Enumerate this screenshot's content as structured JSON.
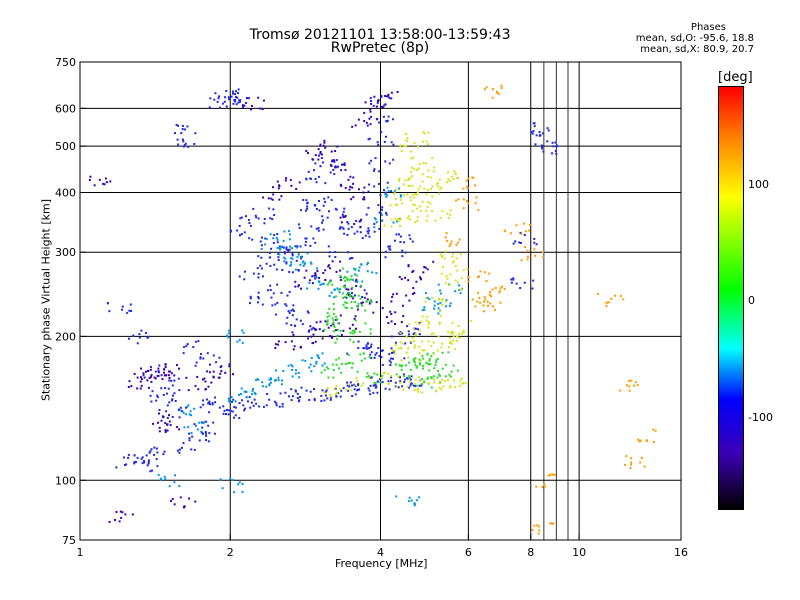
{
  "chart_data": {
    "type": "scatter",
    "title": "Tromsø 20121101 13:58:00-13:59:43",
    "subtitle": "RwPretec (8p)",
    "xlabel": "Frequency [MHz]",
    "ylabel": "Stationary phase Virtual Height [km]",
    "x_scale": "log",
    "y_scale": "log",
    "xlim": [
      1,
      16
    ],
    "ylim": [
      75,
      750
    ],
    "x_ticks": [
      1,
      2,
      4,
      6,
      8,
      10,
      16
    ],
    "x_tick_labels": [
      "1",
      "2",
      "4",
      "6",
      "8",
      "10",
      "16"
    ],
    "x_grid": [
      2,
      4,
      6,
      8,
      10
    ],
    "x_minor": [
      8.5,
      9,
      9.5
    ],
    "y_ticks": [
      75,
      100,
      200,
      300,
      400,
      500,
      600,
      750
    ],
    "y_tick_labels": [
      "75",
      "100",
      "200",
      "300",
      "400",
      "500",
      "600",
      "750"
    ],
    "y_grid": [
      100,
      200,
      300,
      400,
      500,
      600
    ],
    "grid": true,
    "stats": {
      "heading": "Phases",
      "o_line": "mean, sd,O: -95.6, 18.8",
      "x_line": "mean, sd,X: 80.9, 20.7"
    },
    "colorbar": {
      "label": "[deg]",
      "range": [
        -180,
        180
      ],
      "ticks": [
        100,
        0,
        -100
      ],
      "tick_labels": [
        "100",
        "0",
        "-100"
      ],
      "colors": [
        "#ff0000",
        "#ff8000",
        "#ffff00",
        "#00ff00",
        "#00ffff",
        "#0000ff",
        "#3c00b4",
        "#000000"
      ]
    },
    "series": [
      {
        "phase": -100,
        "color": "#1e28e6",
        "points": [
          [
            1.25,
            110
          ],
          [
            1.3,
            112
          ],
          [
            1.35,
            108
          ],
          [
            1.4,
            115
          ],
          [
            1.45,
            150
          ],
          [
            1.5,
            145
          ],
          [
            1.55,
            140
          ],
          [
            1.65,
            118
          ],
          [
            1.7,
            125
          ],
          [
            1.75,
            130
          ],
          [
            1.8,
            145
          ],
          [
            1.9,
            142
          ],
          [
            2.0,
            140
          ],
          [
            2.1,
            144
          ],
          [
            2.2,
            146
          ],
          [
            2.4,
            148
          ],
          [
            2.6,
            150
          ],
          [
            2.8,
            152
          ],
          [
            3.0,
            150
          ],
          [
            3.2,
            152
          ],
          [
            3.4,
            155
          ],
          [
            3.6,
            156
          ],
          [
            3.8,
            158
          ],
          [
            4.0,
            160
          ],
          [
            4.2,
            160
          ],
          [
            4.4,
            162
          ],
          [
            4.6,
            162
          ],
          [
            1.6,
            510
          ],
          [
            1.62,
            540
          ],
          [
            1.9,
            620
          ],
          [
            1.95,
            640
          ],
          [
            2.0,
            635
          ],
          [
            2.05,
            625
          ],
          [
            2.1,
            330
          ],
          [
            2.2,
            350
          ],
          [
            2.3,
            360
          ],
          [
            2.4,
            320
          ],
          [
            2.5,
            300
          ],
          [
            2.6,
            280
          ],
          [
            2.7,
            300
          ],
          [
            2.8,
            320
          ],
          [
            2.9,
            340
          ],
          [
            2.3,
            240
          ],
          [
            2.5,
            250
          ],
          [
            2.6,
            230
          ],
          [
            2.7,
            220
          ],
          [
            2.8,
            210
          ],
          [
            3.0,
            430
          ],
          [
            3.1,
            450
          ],
          [
            3.2,
            470
          ],
          [
            3.0,
            380
          ],
          [
            3.2,
            360
          ],
          [
            3.4,
            340
          ],
          [
            3.6,
            330
          ],
          [
            3.8,
            340
          ],
          [
            3.9,
            370
          ],
          [
            4.0,
            410
          ],
          [
            4.0,
            460
          ],
          [
            4.0,
            520
          ],
          [
            4.0,
            580
          ],
          [
            4.02,
            620
          ],
          [
            3.6,
            190
          ],
          [
            3.8,
            190
          ],
          [
            4.0,
            185
          ],
          [
            4.2,
            180
          ],
          [
            4.4,
            200
          ],
          [
            4.6,
            210
          ],
          [
            1.2,
            230
          ],
          [
            1.3,
            200
          ],
          [
            1.4,
            170
          ],
          [
            1.5,
            160
          ],
          [
            1.7,
            190
          ],
          [
            1.8,
            180
          ],
          [
            2.2,
            270
          ],
          [
            2.4,
            290
          ],
          [
            2.9,
            380
          ],
          [
            3.3,
            300
          ],
          [
            3.5,
            250
          ],
          [
            4.3,
            300
          ],
          [
            4.5,
            320
          ],
          [
            8.4,
            550
          ],
          [
            8.5,
            520
          ],
          [
            8.6,
            490
          ],
          [
            7.6,
            260
          ],
          [
            7.8,
            320
          ]
        ]
      },
      {
        "phase": -130,
        "color": "#3c00b4",
        "points": [
          [
            1.35,
            170
          ],
          [
            1.4,
            165
          ],
          [
            1.45,
            168
          ],
          [
            1.5,
            172
          ],
          [
            1.3,
            160
          ],
          [
            1.45,
            135
          ],
          [
            1.5,
            130
          ],
          [
            1.7,
            160
          ],
          [
            1.8,
            165
          ],
          [
            1.9,
            170
          ],
          [
            2.6,
            195
          ],
          [
            2.8,
            200
          ],
          [
            3.0,
            210
          ],
          [
            3.2,
            205
          ],
          [
            3.4,
            215
          ],
          [
            3.0,
            480
          ],
          [
            3.1,
            500
          ],
          [
            3.2,
            460
          ],
          [
            3.4,
            420
          ],
          [
            3.6,
            400
          ],
          [
            2.8,
            260
          ],
          [
            3.0,
            270
          ],
          [
            3.2,
            280
          ],
          [
            3.4,
            260
          ],
          [
            3.6,
            240
          ],
          [
            3.8,
            230
          ],
          [
            4.2,
            220
          ],
          [
            4.4,
            240
          ],
          [
            4.6,
            260
          ],
          [
            4.8,
            280
          ],
          [
            2.4,
            400
          ],
          [
            2.6,
            420
          ],
          [
            2.2,
            620
          ],
          [
            3.5,
            350
          ],
          [
            3.7,
            560
          ],
          [
            3.9,
            600
          ],
          [
            4.1,
            640
          ],
          [
            1.6,
            90
          ],
          [
            1.2,
            85
          ],
          [
            1.1,
            420
          ]
        ]
      },
      {
        "phase": -60,
        "color": "#0096e6",
        "points": [
          [
            2.1,
            150
          ],
          [
            2.2,
            155
          ],
          [
            2.3,
            160
          ],
          [
            2.4,
            165
          ],
          [
            2.6,
            170
          ],
          [
            2.8,
            175
          ],
          [
            3.0,
            180
          ],
          [
            2.4,
            310
          ],
          [
            2.5,
            330
          ],
          [
            2.6,
            300
          ],
          [
            2.7,
            290
          ],
          [
            2.8,
            280
          ],
          [
            3.0,
            260
          ],
          [
            3.2,
            250
          ],
          [
            3.6,
            270
          ],
          [
            3.8,
            280
          ],
          [
            4.1,
            350
          ],
          [
            4.3,
            400
          ],
          [
            1.6,
            140
          ],
          [
            1.7,
            130
          ],
          [
            2.0,
            200
          ],
          [
            5.0,
            230
          ],
          [
            5.2,
            240
          ],
          [
            5.5,
            250
          ],
          [
            4.5,
            90
          ],
          [
            2.0,
            98
          ],
          [
            1.5,
            100
          ]
        ]
      },
      {
        "phase": 20,
        "color": "#28dc28",
        "points": [
          [
            3.1,
            210
          ],
          [
            3.2,
            220
          ],
          [
            3.3,
            230
          ],
          [
            3.4,
            240
          ],
          [
            3.5,
            250
          ],
          [
            3.3,
            260
          ],
          [
            3.5,
            270
          ],
          [
            3.6,
            235
          ],
          [
            3.4,
            200
          ],
          [
            3.6,
            210
          ],
          [
            3.2,
            170
          ],
          [
            3.4,
            175
          ],
          [
            3.6,
            180
          ],
          [
            3.8,
            165
          ],
          [
            4.4,
            170
          ],
          [
            4.6,
            175
          ],
          [
            4.8,
            180
          ],
          [
            5.0,
            175
          ],
          [
            5.2,
            180
          ],
          [
            4.8,
            160
          ],
          [
            5.0,
            165
          ],
          [
            5.4,
            170
          ]
        ]
      },
      {
        "phase": 80,
        "color": "#d2e61e",
        "points": [
          [
            4.4,
            380
          ],
          [
            4.5,
            400
          ],
          [
            4.6,
            420
          ],
          [
            4.7,
            440
          ],
          [
            4.8,
            460
          ],
          [
            4.6,
            500
          ],
          [
            4.7,
            520
          ],
          [
            4.5,
            360
          ],
          [
            4.3,
            350
          ],
          [
            4.9,
            380
          ],
          [
            5.0,
            400
          ],
          [
            5.2,
            420
          ],
          [
            5.4,
            440
          ],
          [
            5.2,
            360
          ],
          [
            4.6,
            200
          ],
          [
            4.8,
            210
          ],
          [
            5.0,
            220
          ],
          [
            5.2,
            240
          ],
          [
            5.5,
            260
          ],
          [
            5.6,
            280
          ],
          [
            5.5,
            300
          ],
          [
            4.4,
            190
          ],
          [
            4.6,
            185
          ],
          [
            5.0,
            190
          ],
          [
            5.4,
            195
          ],
          [
            5.6,
            200
          ],
          [
            5.8,
            210
          ],
          [
            4.2,
            165
          ],
          [
            4.5,
            160
          ],
          [
            5.0,
            158
          ],
          [
            5.4,
            158
          ],
          [
            5.7,
            160
          ],
          [
            3.2,
            155
          ],
          [
            3.6,
            160
          ]
        ]
      },
      {
        "phase": 140,
        "color": "#ff9b00",
        "points": [
          [
            5.8,
            420
          ],
          [
            5.9,
            380
          ],
          [
            5.7,
            320
          ],
          [
            6.6,
            650
          ],
          [
            6.2,
            270
          ],
          [
            6.3,
            240
          ],
          [
            6.6,
            230
          ],
          [
            7.0,
            250
          ],
          [
            7.5,
            340
          ],
          [
            8.0,
            300
          ],
          [
            11.5,
            240
          ],
          [
            12.5,
            160
          ],
          [
            13.5,
            125
          ],
          [
            13.0,
            110
          ],
          [
            8.6,
            100
          ],
          [
            8.4,
            80
          ]
        ]
      }
    ]
  }
}
